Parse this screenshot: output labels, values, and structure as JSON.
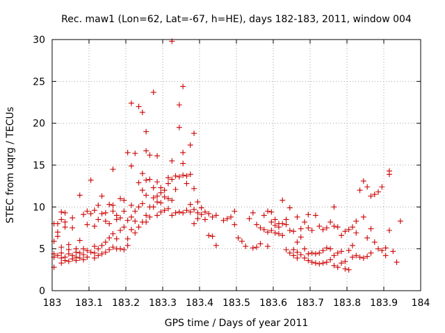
{
  "chart_data": {
    "type": "scatter",
    "title": "Rec. maw1 (Lon=62, Lat=-67, h=HE), days 182-183, 2011, window 004",
    "xlabel": "GPS time / Days of year 2011",
    "ylabel": "STEC from uqrg / TECUs",
    "xlim": [
      183,
      184
    ],
    "ylim": [
      0,
      30
    ],
    "x_ticks": [
      183,
      183.1,
      183.2,
      183.3,
      183.4,
      183.5,
      183.6,
      183.7,
      183.8,
      183.9,
      184
    ],
    "x_tick_labels": [
      "183",
      "183.1",
      "183.2",
      "183.3",
      "183.4",
      "183.5",
      "183.6",
      "183.7",
      "183.8",
      "183.9",
      "184"
    ],
    "y_ticks": [
      0,
      5,
      10,
      15,
      20,
      25,
      30
    ],
    "y_tick_labels": [
      "0",
      "5",
      "10",
      "15",
      "20",
      "25",
      "30"
    ],
    "grid": true,
    "marker": "+",
    "color": "#cc0000",
    "points": [
      [
        183.005,
        2.8
      ],
      [
        183.005,
        4.0
      ],
      [
        183.005,
        4.4
      ],
      [
        183.005,
        5.9
      ],
      [
        183.005,
        8.0
      ],
      [
        183.015,
        4.2
      ],
      [
        183.015,
        6.5
      ],
      [
        183.015,
        7.0
      ],
      [
        183.015,
        8.0
      ],
      [
        183.025,
        3.3
      ],
      [
        183.025,
        3.9
      ],
      [
        183.025,
        4.5
      ],
      [
        183.025,
        5.2
      ],
      [
        183.025,
        8.5
      ],
      [
        183.025,
        9.4
      ],
      [
        183.035,
        3.6
      ],
      [
        183.035,
        4.0
      ],
      [
        183.035,
        7.6
      ],
      [
        183.035,
        8.2
      ],
      [
        183.035,
        9.3
      ],
      [
        183.045,
        3.5
      ],
      [
        183.045,
        4.4
      ],
      [
        183.045,
        4.9
      ],
      [
        183.045,
        5.5
      ],
      [
        183.055,
        3.8
      ],
      [
        183.055,
        4.2
      ],
      [
        183.055,
        7.5
      ],
      [
        183.055,
        8.7
      ],
      [
        183.065,
        3.6
      ],
      [
        183.065,
        4.0
      ],
      [
        183.065,
        4.6
      ],
      [
        183.065,
        5.0
      ],
      [
        183.075,
        3.9
      ],
      [
        183.075,
        4.5
      ],
      [
        183.075,
        6.0
      ],
      [
        183.075,
        11.4
      ],
      [
        183.085,
        3.7
      ],
      [
        183.085,
        4.3
      ],
      [
        183.085,
        5.0
      ],
      [
        183.085,
        9.1
      ],
      [
        183.095,
        4.0
      ],
      [
        183.095,
        4.8
      ],
      [
        183.095,
        7.9
      ],
      [
        183.095,
        9.5
      ],
      [
        183.105,
        4.6
      ],
      [
        183.105,
        9.2
      ],
      [
        183.105,
        13.2
      ],
      [
        183.115,
        3.9
      ],
      [
        183.115,
        4.5
      ],
      [
        183.115,
        5.3
      ],
      [
        183.115,
        7.7
      ],
      [
        183.115,
        9.6
      ],
      [
        183.125,
        4.2
      ],
      [
        183.125,
        5.0
      ],
      [
        183.125,
        8.5
      ],
      [
        183.125,
        10.2
      ],
      [
        183.135,
        4.4
      ],
      [
        183.135,
        5.4
      ],
      [
        183.135,
        9.2
      ],
      [
        183.135,
        11.3
      ],
      [
        183.145,
        4.6
      ],
      [
        183.145,
        5.8
      ],
      [
        183.145,
        8.3
      ],
      [
        183.145,
        9.3
      ],
      [
        183.155,
        4.9
      ],
      [
        183.155,
        6.3
      ],
      [
        183.155,
        8.0
      ],
      [
        183.155,
        10.3
      ],
      [
        183.165,
        5.2
      ],
      [
        183.165,
        6.8
      ],
      [
        183.165,
        9.5
      ],
      [
        183.165,
        10.2
      ],
      [
        183.165,
        14.5
      ],
      [
        183.175,
        5.0
      ],
      [
        183.175,
        6.2
      ],
      [
        183.175,
        8.5
      ],
      [
        183.175,
        9.0
      ],
      [
        183.185,
        5.0
      ],
      [
        183.185,
        7.2
      ],
      [
        183.185,
        8.7
      ],
      [
        183.185,
        11.0
      ],
      [
        183.195,
        4.9
      ],
      [
        183.195,
        7.6
      ],
      [
        183.195,
        9.5
      ],
      [
        183.195,
        10.8
      ],
      [
        183.205,
        5.4
      ],
      [
        183.205,
        6.2
      ],
      [
        183.205,
        8.4
      ],
      [
        183.205,
        16.5
      ],
      [
        183.215,
        7.3
      ],
      [
        183.215,
        8.8
      ],
      [
        183.215,
        10.2
      ],
      [
        183.215,
        14.9
      ],
      [
        183.215,
        22.4
      ],
      [
        183.225,
        6.9
      ],
      [
        183.225,
        8.3
      ],
      [
        183.225,
        9.5
      ],
      [
        183.225,
        16.4
      ],
      [
        183.235,
        7.6
      ],
      [
        183.235,
        10.0
      ],
      [
        183.235,
        12.9
      ],
      [
        183.235,
        22.0
      ],
      [
        183.245,
        8.2
      ],
      [
        183.245,
        10.4
      ],
      [
        183.245,
        12.0
      ],
      [
        183.245,
        14.0
      ],
      [
        183.245,
        21.3
      ],
      [
        183.255,
        8.2
      ],
      [
        183.255,
        9.0
      ],
      [
        183.255,
        11.4
      ],
      [
        183.255,
        13.2
      ],
      [
        183.255,
        16.7
      ],
      [
        183.255,
        19.0
      ],
      [
        183.265,
        8.8
      ],
      [
        183.265,
        10.0
      ],
      [
        183.265,
        13.3
      ],
      [
        183.265,
        16.2
      ],
      [
        183.275,
        10.0
      ],
      [
        183.275,
        11.1
      ],
      [
        183.275,
        12.3
      ],
      [
        183.275,
        23.7
      ],
      [
        183.285,
        9.0
      ],
      [
        183.285,
        10.6
      ],
      [
        183.285,
        11.3
      ],
      [
        183.285,
        13.0
      ],
      [
        183.285,
        16.1
      ],
      [
        183.295,
        9.4
      ],
      [
        183.295,
        10.5
      ],
      [
        183.295,
        11.7
      ],
      [
        183.295,
        12.3
      ],
      [
        183.305,
        9.6
      ],
      [
        183.305,
        11.2
      ],
      [
        183.305,
        12.0
      ],
      [
        183.315,
        9.8
      ],
      [
        183.315,
        11.0
      ],
      [
        183.315,
        12.8
      ],
      [
        183.315,
        13.5
      ],
      [
        183.325,
        9.0
      ],
      [
        183.325,
        10.8
      ],
      [
        183.325,
        13.3
      ],
      [
        183.325,
        15.5
      ],
      [
        183.325,
        29.8
      ],
      [
        183.335,
        9.3
      ],
      [
        183.335,
        12.1
      ],
      [
        183.335,
        13.7
      ],
      [
        183.345,
        9.4
      ],
      [
        183.345,
        13.6
      ],
      [
        183.345,
        19.5
      ],
      [
        183.345,
        22.2
      ],
      [
        183.355,
        9.3
      ],
      [
        183.355,
        13.8
      ],
      [
        183.355,
        15.2
      ],
      [
        183.355,
        16.5
      ],
      [
        183.355,
        24.4
      ],
      [
        183.365,
        9.6
      ],
      [
        183.365,
        12.8
      ],
      [
        183.365,
        13.7
      ],
      [
        183.375,
        9.4
      ],
      [
        183.375,
        10.3
      ],
      [
        183.375,
        13.9
      ],
      [
        183.375,
        17.4
      ],
      [
        183.385,
        8.0
      ],
      [
        183.385,
        9.7
      ],
      [
        183.385,
        12.2
      ],
      [
        183.385,
        18.8
      ],
      [
        183.395,
        8.6
      ],
      [
        183.395,
        9.3
      ],
      [
        183.395,
        10.6
      ],
      [
        183.405,
        9.1
      ],
      [
        183.405,
        9.9
      ],
      [
        183.415,
        8.5
      ],
      [
        183.415,
        9.4
      ],
      [
        183.425,
        6.6
      ],
      [
        183.425,
        9.2
      ],
      [
        183.435,
        6.5
      ],
      [
        183.435,
        8.8
      ],
      [
        183.445,
        5.4
      ],
      [
        183.445,
        9.0
      ],
      [
        183.465,
        8.4
      ],
      [
        183.475,
        8.6
      ],
      [
        183.485,
        8.8
      ],
      [
        183.495,
        7.9
      ],
      [
        183.495,
        9.5
      ],
      [
        183.505,
        6.3
      ],
      [
        183.515,
        5.9
      ],
      [
        183.525,
        5.3
      ],
      [
        183.535,
        8.6
      ],
      [
        183.545,
        5.1
      ],
      [
        183.545,
        9.3
      ],
      [
        183.555,
        5.2
      ],
      [
        183.555,
        7.9
      ],
      [
        183.565,
        5.6
      ],
      [
        183.565,
        7.5
      ],
      [
        183.575,
        7.3
      ],
      [
        183.575,
        9.0
      ],
      [
        183.585,
        5.3
      ],
      [
        183.585,
        7.0
      ],
      [
        183.585,
        9.5
      ],
      [
        183.595,
        7.2
      ],
      [
        183.595,
        8.2
      ],
      [
        183.595,
        9.4
      ],
      [
        183.605,
        6.9
      ],
      [
        183.605,
        7.8
      ],
      [
        183.605,
        8.5
      ],
      [
        183.615,
        6.8
      ],
      [
        183.615,
        7.6
      ],
      [
        183.615,
        8.0
      ],
      [
        183.625,
        6.6
      ],
      [
        183.625,
        8.0
      ],
      [
        183.625,
        10.8
      ],
      [
        183.635,
        4.9
      ],
      [
        183.635,
        7.9
      ],
      [
        183.635,
        8.5
      ],
      [
        183.645,
        4.5
      ],
      [
        183.645,
        7.2
      ],
      [
        183.645,
        9.9
      ],
      [
        183.655,
        4.2
      ],
      [
        183.655,
        4.9
      ],
      [
        183.655,
        7.1
      ],
      [
        183.665,
        3.9
      ],
      [
        183.665,
        4.6
      ],
      [
        183.665,
        5.8
      ],
      [
        183.665,
        8.8
      ],
      [
        183.675,
        4.3
      ],
      [
        183.675,
        6.4
      ],
      [
        183.675,
        7.4
      ],
      [
        183.685,
        3.9
      ],
      [
        183.685,
        5.0
      ],
      [
        183.685,
        8.2
      ],
      [
        183.695,
        3.6
      ],
      [
        183.695,
        4.4
      ],
      [
        183.695,
        7.5
      ],
      [
        183.695,
        9.1
      ],
      [
        183.705,
        3.4
      ],
      [
        183.705,
        4.5
      ],
      [
        183.705,
        7.2
      ],
      [
        183.715,
        3.3
      ],
      [
        183.715,
        4.4
      ],
      [
        183.715,
        9.0
      ],
      [
        183.725,
        3.2
      ],
      [
        183.725,
        4.5
      ],
      [
        183.725,
        7.7
      ],
      [
        183.735,
        3.3
      ],
      [
        183.735,
        4.8
      ],
      [
        183.735,
        7.3
      ],
      [
        183.745,
        3.4
      ],
      [
        183.745,
        5.1
      ],
      [
        183.745,
        7.5
      ],
      [
        183.755,
        3.7
      ],
      [
        183.755,
        5.0
      ],
      [
        183.755,
        8.2
      ],
      [
        183.765,
        3.0
      ],
      [
        183.765,
        4.2
      ],
      [
        183.765,
        7.7
      ],
      [
        183.765,
        10.0
      ],
      [
        183.775,
        2.8
      ],
      [
        183.775,
        4.5
      ],
      [
        183.775,
        7.6
      ],
      [
        183.785,
        3.3
      ],
      [
        183.785,
        4.7
      ],
      [
        183.785,
        6.6
      ],
      [
        183.795,
        2.6
      ],
      [
        183.795,
        3.5
      ],
      [
        183.795,
        7.1
      ],
      [
        183.805,
        2.5
      ],
      [
        183.805,
        4.8
      ],
      [
        183.805,
        7.3
      ],
      [
        183.815,
        4.0
      ],
      [
        183.815,
        5.4
      ],
      [
        183.815,
        7.6
      ],
      [
        183.825,
        4.2
      ],
      [
        183.825,
        6.9
      ],
      [
        183.825,
        8.3
      ],
      [
        183.835,
        4.0
      ],
      [
        183.835,
        12.0
      ],
      [
        183.845,
        3.9
      ],
      [
        183.845,
        8.8
      ],
      [
        183.845,
        13.1
      ],
      [
        183.855,
        4.1
      ],
      [
        183.855,
        6.3
      ],
      [
        183.855,
        12.4
      ],
      [
        183.865,
        4.5
      ],
      [
        183.865,
        7.4
      ],
      [
        183.865,
        11.3
      ],
      [
        183.875,
        5.8
      ],
      [
        183.875,
        11.5
      ],
      [
        183.885,
        5.0
      ],
      [
        183.885,
        11.8
      ],
      [
        183.895,
        4.8
      ],
      [
        183.895,
        12.4
      ],
      [
        183.905,
        4.2
      ],
      [
        183.905,
        5.1
      ],
      [
        183.915,
        7.2
      ],
      [
        183.915,
        13.9
      ],
      [
        183.915,
        14.3
      ],
      [
        183.925,
        4.7
      ],
      [
        183.935,
        3.4
      ],
      [
        183.945,
        8.3
      ]
    ]
  }
}
